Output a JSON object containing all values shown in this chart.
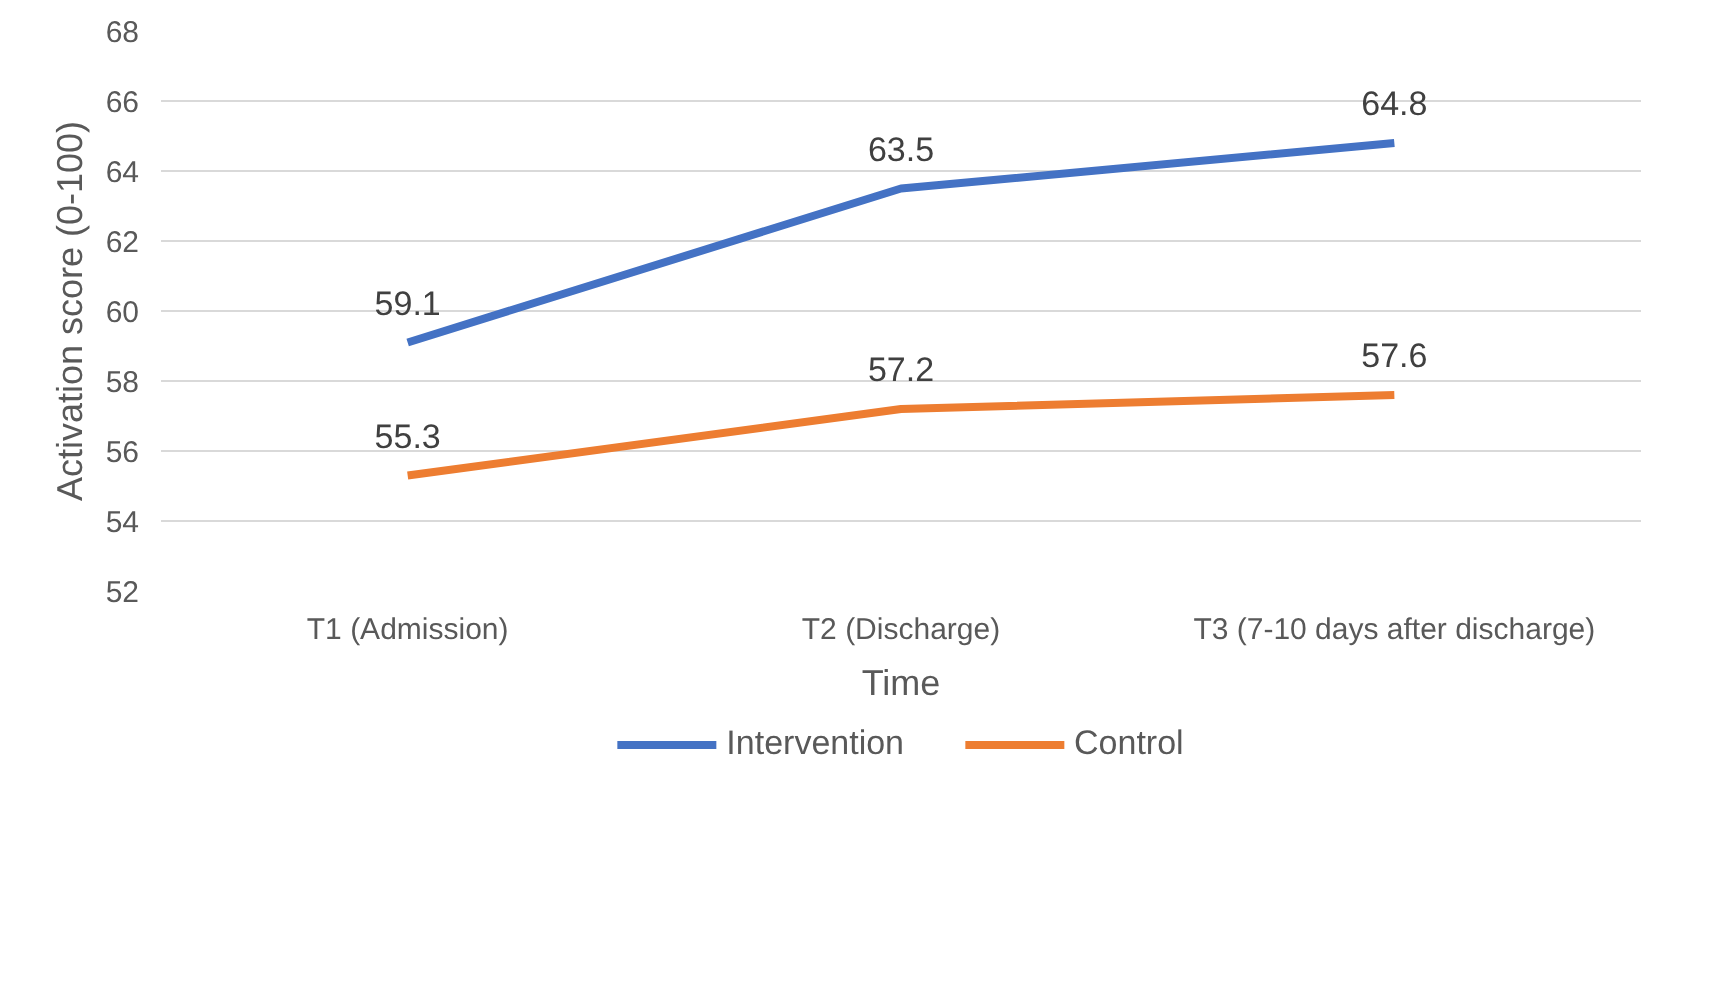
{
  "chart_data": {
    "type": "line",
    "xlabel": "Time",
    "ylabel": "Activation score (0-100)",
    "categories": [
      "T1 (Admission)",
      "T2 (Discharge)",
      "T3 (7-10 days after discharge)"
    ],
    "series": [
      {
        "name": "Intervention",
        "color": "#4472c4",
        "values": [
          59.1,
          63.5,
          64.8
        ]
      },
      {
        "name": "Control",
        "color": "#ed7d31",
        "values": [
          55.3,
          57.2,
          57.6
        ]
      }
    ],
    "ylim": [
      52,
      68
    ],
    "yticks": [
      52,
      54,
      56,
      58,
      60,
      62,
      64,
      66,
      68
    ],
    "grid": "y",
    "legend": "bottom",
    "data_labels": true,
    "marker": "none",
    "line_style": "solid"
  }
}
